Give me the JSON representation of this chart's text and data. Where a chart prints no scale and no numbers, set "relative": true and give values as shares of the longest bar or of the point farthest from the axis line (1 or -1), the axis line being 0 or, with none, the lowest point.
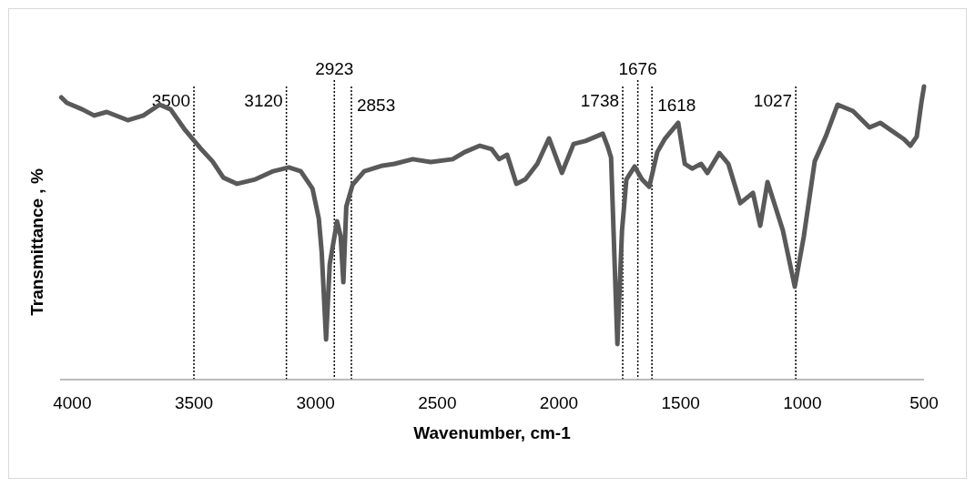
{
  "chart_data": {
    "type": "line",
    "relative": true,
    "xlabel": "Wavenumber, cm-1",
    "ylabel": "Transmittance , %",
    "xlim": [
      4050,
      500
    ],
    "xticks": [
      4000,
      3500,
      3000,
      2500,
      2000,
      1500,
      1000,
      500
    ],
    "marker": "none",
    "line_style": "solid",
    "series": [
      {
        "color": "#595959",
        "x": [
          4045,
          4022,
          3959,
          3910,
          3858,
          3772,
          3708,
          3641,
          3596,
          3536,
          3473,
          3424,
          3379,
          3323,
          3248,
          3174,
          3110,
          3061,
          3013,
          2987,
          2975,
          2957,
          2942,
          2912,
          2897,
          2886,
          2874,
          2848,
          2800,
          2725,
          2676,
          2601,
          2527,
          2437,
          2388,
          2325,
          2276,
          2246,
          2213,
          2175,
          2138,
          2089,
          2041,
          1988,
          1940,
          1891,
          1820,
          1801,
          1786,
          1760,
          1741,
          1723,
          1689,
          1659,
          1629,
          1596,
          1566,
          1510,
          1483,
          1453,
          1416,
          1390,
          1341,
          1304,
          1255,
          1203,
          1173,
          1143,
          1080,
          1031,
          994,
          949,
          904,
          855,
          792,
          724,
          680,
          582,
          556,
          530,
          511,
          500
        ],
        "values": [
          0.963,
          0.944,
          0.922,
          0.901,
          0.913,
          0.885,
          0.901,
          0.938,
          0.922,
          0.851,
          0.789,
          0.745,
          0.689,
          0.668,
          0.683,
          0.711,
          0.724,
          0.711,
          0.652,
          0.55,
          0.435,
          0.137,
          0.394,
          0.54,
          0.488,
          0.332,
          0.59,
          0.665,
          0.711,
          0.73,
          0.736,
          0.752,
          0.742,
          0.752,
          0.776,
          0.798,
          0.786,
          0.752,
          0.767,
          0.668,
          0.683,
          0.736,
          0.823,
          0.705,
          0.804,
          0.814,
          0.839,
          0.798,
          0.758,
          0.121,
          0.509,
          0.683,
          0.727,
          0.683,
          0.658,
          0.776,
          0.82,
          0.876,
          0.736,
          0.72,
          0.736,
          0.705,
          0.773,
          0.736,
          0.602,
          0.637,
          0.525,
          0.674,
          0.509,
          0.317,
          0.488,
          0.745,
          0.829,
          0.938,
          0.916,
          0.86,
          0.876,
          0.82,
          0.798,
          0.829,
          0.944,
          1
        ]
      }
    ],
    "ref_lines": [
      {
        "axis": "x",
        "value": 3500,
        "label": "3500",
        "line_style": "dotted",
        "color": "#000000"
      },
      {
        "axis": "x",
        "value": 3120,
        "label": "3120",
        "line_style": "dotted",
        "color": "#000000"
      },
      {
        "axis": "x",
        "value": 2923,
        "label": "2923",
        "line_style": "dotted",
        "color": "#000000"
      },
      {
        "axis": "x",
        "value": 2853,
        "label": "2853",
        "line_style": "dotted",
        "color": "#000000"
      },
      {
        "axis": "x",
        "value": 1738,
        "label": "1738",
        "line_style": "dotted",
        "color": "#000000"
      },
      {
        "axis": "x",
        "value": 1676,
        "label": "1676",
        "line_style": "dotted",
        "color": "#000000"
      },
      {
        "axis": "x",
        "value": 1618,
        "label": "1618",
        "line_style": "dotted",
        "color": "#000000"
      },
      {
        "axis": "x",
        "value": 1027,
        "label": "1027",
        "line_style": "dotted",
        "color": "#000000"
      }
    ]
  }
}
